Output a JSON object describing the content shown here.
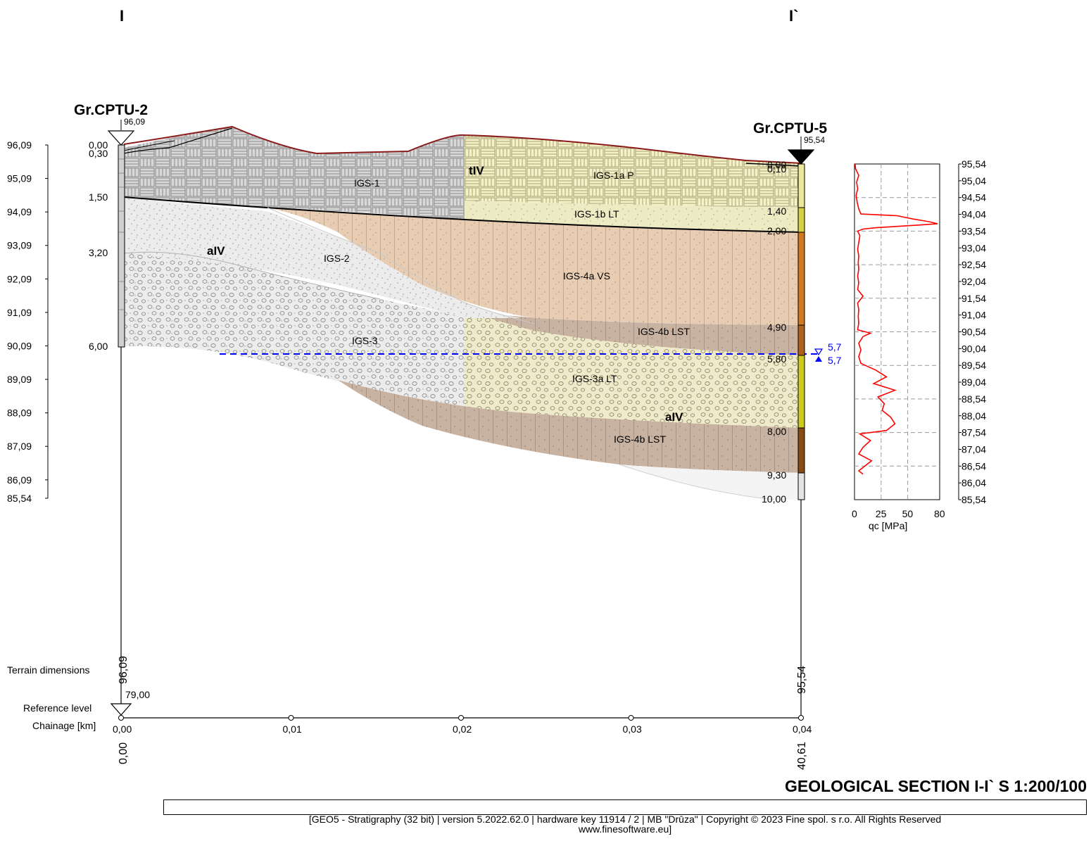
{
  "section_marks": {
    "left": "I",
    "right": "I`"
  },
  "boreholes": [
    {
      "name": "Gr.CPTU-2",
      "top_level": "96,09",
      "depths": [
        "0,00",
        "0,30",
        "1,50",
        "3,20",
        "6,00"
      ],
      "terrain_dimension": "96,09",
      "chainage": "0,00"
    },
    {
      "name": "Gr.CPTU-5",
      "top_level": "95,54",
      "depths": [
        "0,00",
        "0,10",
        "1,40",
        "2,00",
        "4,90",
        "5,80",
        "8,00",
        "9,30",
        "10,00"
      ],
      "terrain_dimension": "95,54",
      "chainage": "40,61"
    }
  ],
  "left_axis_ticks": [
    "96,09",
    "95,09",
    "94,09",
    "93,09",
    "92,09",
    "91,09",
    "90,09",
    "89,09",
    "88,09",
    "87,09",
    "86,09",
    "85,54"
  ],
  "right_axis_ticks": [
    "95,54",
    "95,04",
    "94,54",
    "94,04",
    "93,54",
    "93,04",
    "92,54",
    "92,04",
    "91,54",
    "91,04",
    "90,54",
    "90,04",
    "89,54",
    "89,04",
    "88,54",
    "88,04",
    "87,54",
    "87,04",
    "86,54",
    "86,04",
    "85,54"
  ],
  "layer_labels": [
    "IGS-1",
    "tIV",
    "IGS-1a P",
    "IGS-1b LT",
    "aIV",
    "IGS-2",
    "IGS-4a VS",
    "IGS-4b LST",
    "IGS-3",
    "IGS-3a LT",
    "aIV",
    "IGS-4b LST"
  ],
  "water_level": [
    "5,7",
    "5,7"
  ],
  "colors": {
    "terrain": "#8b1a1a",
    "water": "#0000ff",
    "qc_curve": "#ff0000"
  },
  "chart_data": {
    "type": "line",
    "xlabel": "qc [MPa]",
    "x_ticks": [
      "0",
      "25",
      "50",
      "80"
    ],
    "xlim": [
      0,
      80
    ],
    "ylim": [
      85.54,
      95.54
    ],
    "series": [
      {
        "values": [
          [
            0.5,
            95.54
          ],
          [
            1,
            95.4
          ],
          [
            4,
            95.2
          ],
          [
            2,
            95.0
          ],
          [
            3,
            94.8
          ],
          [
            1.5,
            94.6
          ],
          [
            2.5,
            94.4
          ],
          [
            4,
            94.2
          ],
          [
            6,
            94.05
          ],
          [
            40,
            94.0
          ],
          [
            55,
            93.9
          ],
          [
            70,
            93.82
          ],
          [
            78,
            93.76
          ],
          [
            60,
            93.72
          ],
          [
            40,
            93.68
          ],
          [
            20,
            93.64
          ],
          [
            8,
            93.6
          ],
          [
            3,
            93.54
          ],
          [
            5,
            93.4
          ],
          [
            4,
            93.2
          ],
          [
            3,
            93.0
          ],
          [
            4,
            92.8
          ],
          [
            3.5,
            92.6
          ],
          [
            4,
            92.4
          ],
          [
            3,
            92.2
          ],
          [
            4,
            92.0
          ],
          [
            3,
            91.8
          ],
          [
            8,
            91.6
          ],
          [
            3,
            91.4
          ],
          [
            4,
            91.2
          ],
          [
            3.5,
            91.0
          ],
          [
            4,
            90.8
          ],
          [
            3,
            90.6
          ],
          [
            15,
            90.5
          ],
          [
            8,
            90.4
          ],
          [
            4,
            90.2
          ],
          [
            6,
            90.0
          ],
          [
            4,
            89.8
          ],
          [
            6,
            89.6
          ],
          [
            20,
            89.4
          ],
          [
            30,
            89.2
          ],
          [
            18,
            89.0
          ],
          [
            38,
            88.8
          ],
          [
            22,
            88.6
          ],
          [
            28,
            88.4
          ],
          [
            26,
            88.2
          ],
          [
            34,
            88.0
          ],
          [
            38,
            87.8
          ],
          [
            30,
            87.6
          ],
          [
            5,
            87.5
          ],
          [
            15,
            87.3
          ],
          [
            8,
            87.1
          ],
          [
            4,
            86.9
          ],
          [
            16,
            86.7
          ],
          [
            8,
            86.5
          ],
          [
            4,
            86.4
          ],
          [
            8,
            86.3
          ]
        ]
      }
    ]
  },
  "bottom_labels": {
    "terrain_dimensions": "Terrain dimensions",
    "reference_level": "Reference level",
    "reference_value": "79,00",
    "chainage_label": "Chainage [km]"
  },
  "chainage_ticks": [
    "0,00",
    "0,01",
    "0,02",
    "0,03",
    "0,04"
  ],
  "title": "GEOLOGICAL  SECTION I-I`  S 1:200/100",
  "footer": {
    "line1": "[GEO5 - Stratigraphy (32 bit) | version 5.2022.62.0 | hardware key 11914 / 2 | MB \"Drūza\" | Copyright © 2023 Fine spol. s r.o. All Rights Reserved",
    "line2": "www.finesoftware.eu]"
  }
}
